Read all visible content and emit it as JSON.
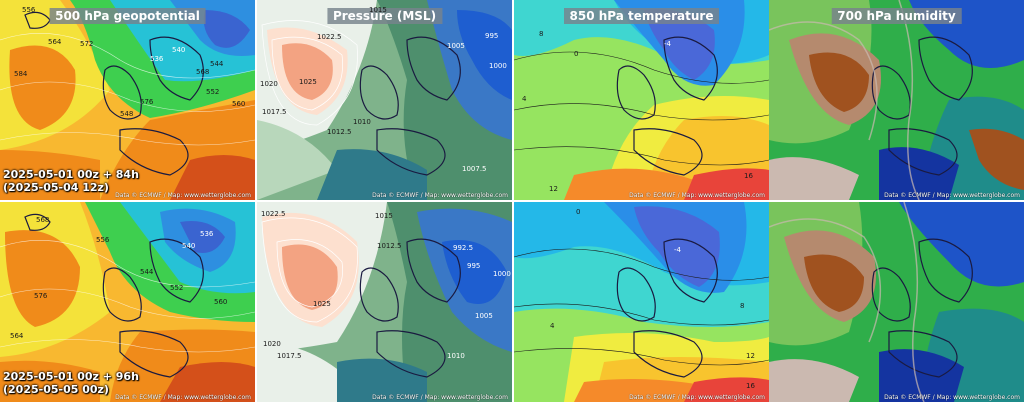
{
  "panels": {
    "geo": {
      "title": "500 hPa geopotential"
    },
    "msl": {
      "title": "Pressure (MSL)"
    },
    "t850": {
      "title": "850 hPa temperature"
    },
    "rh700": {
      "title": "700 hPa humidity"
    }
  },
  "rows": [
    {
      "run_line1": "2025-05-01 00z + 84h",
      "run_line2": "(2025-05-04 12z)"
    },
    {
      "run_line1": "2025-05-01 00z + 96h",
      "run_line2": "(2025-05-05 00z)"
    }
  ],
  "credit": "Data © ECMWF / Map: www.wetterglobe.com",
  "contour_labels": {
    "geo_top": [
      "556",
      "564",
      "572",
      "560",
      "568",
      "584",
      "576",
      "552",
      "536",
      "540",
      "544",
      "548"
    ],
    "geo_bottom": [
      "568",
      "576",
      "560",
      "552",
      "540",
      "536",
      "544",
      "556",
      "564"
    ],
    "msl_top": [
      "1015",
      "1022.5",
      "1025",
      "1020",
      "1017.5",
      "1012.5",
      "1010",
      "1005",
      "995",
      "1000",
      "1007.5"
    ],
    "msl_bottom": [
      "1022.5",
      "1025",
      "1020",
      "1017.5",
      "1015",
      "1012.5",
      "995",
      "992.5",
      "1000",
      "1005",
      "1010"
    ],
    "t850_top": [
      "8",
      "4",
      "0",
      "-4",
      "12",
      "16"
    ],
    "t850_bottom": [
      "0",
      "4",
      "8",
      "12",
      "16",
      "-4"
    ]
  },
  "colors": {
    "geo": [
      "#d4501a",
      "#f08b1a",
      "#f8b830",
      "#f4e23a",
      "#a6e35a",
      "#3ecf4f",
      "#26c2d6",
      "#2e8fe0",
      "#3a64d0",
      "#6a57c8"
    ],
    "msl": [
      "#f3a382",
      "#fde0cf",
      "#e9f0e9",
      "#b8d7bb",
      "#7fb38b",
      "#4e8f6d",
      "#2f7a8a",
      "#3a78c6",
      "#1e5ed0"
    ],
    "t850": [
      "#e8443a",
      "#f58a2a",
      "#f8c42e",
      "#f0ec40",
      "#96e460",
      "#3fd6d0",
      "#24b8e8",
      "#2a8ee8",
      "#4a68d8"
    ],
    "rh": [
      "#a0521f",
      "#b58a6e",
      "#cbb9b0",
      "#79c45c",
      "#2fae4a",
      "#1f8c8a",
      "#1e54c8",
      "#1434a0"
    ]
  }
}
